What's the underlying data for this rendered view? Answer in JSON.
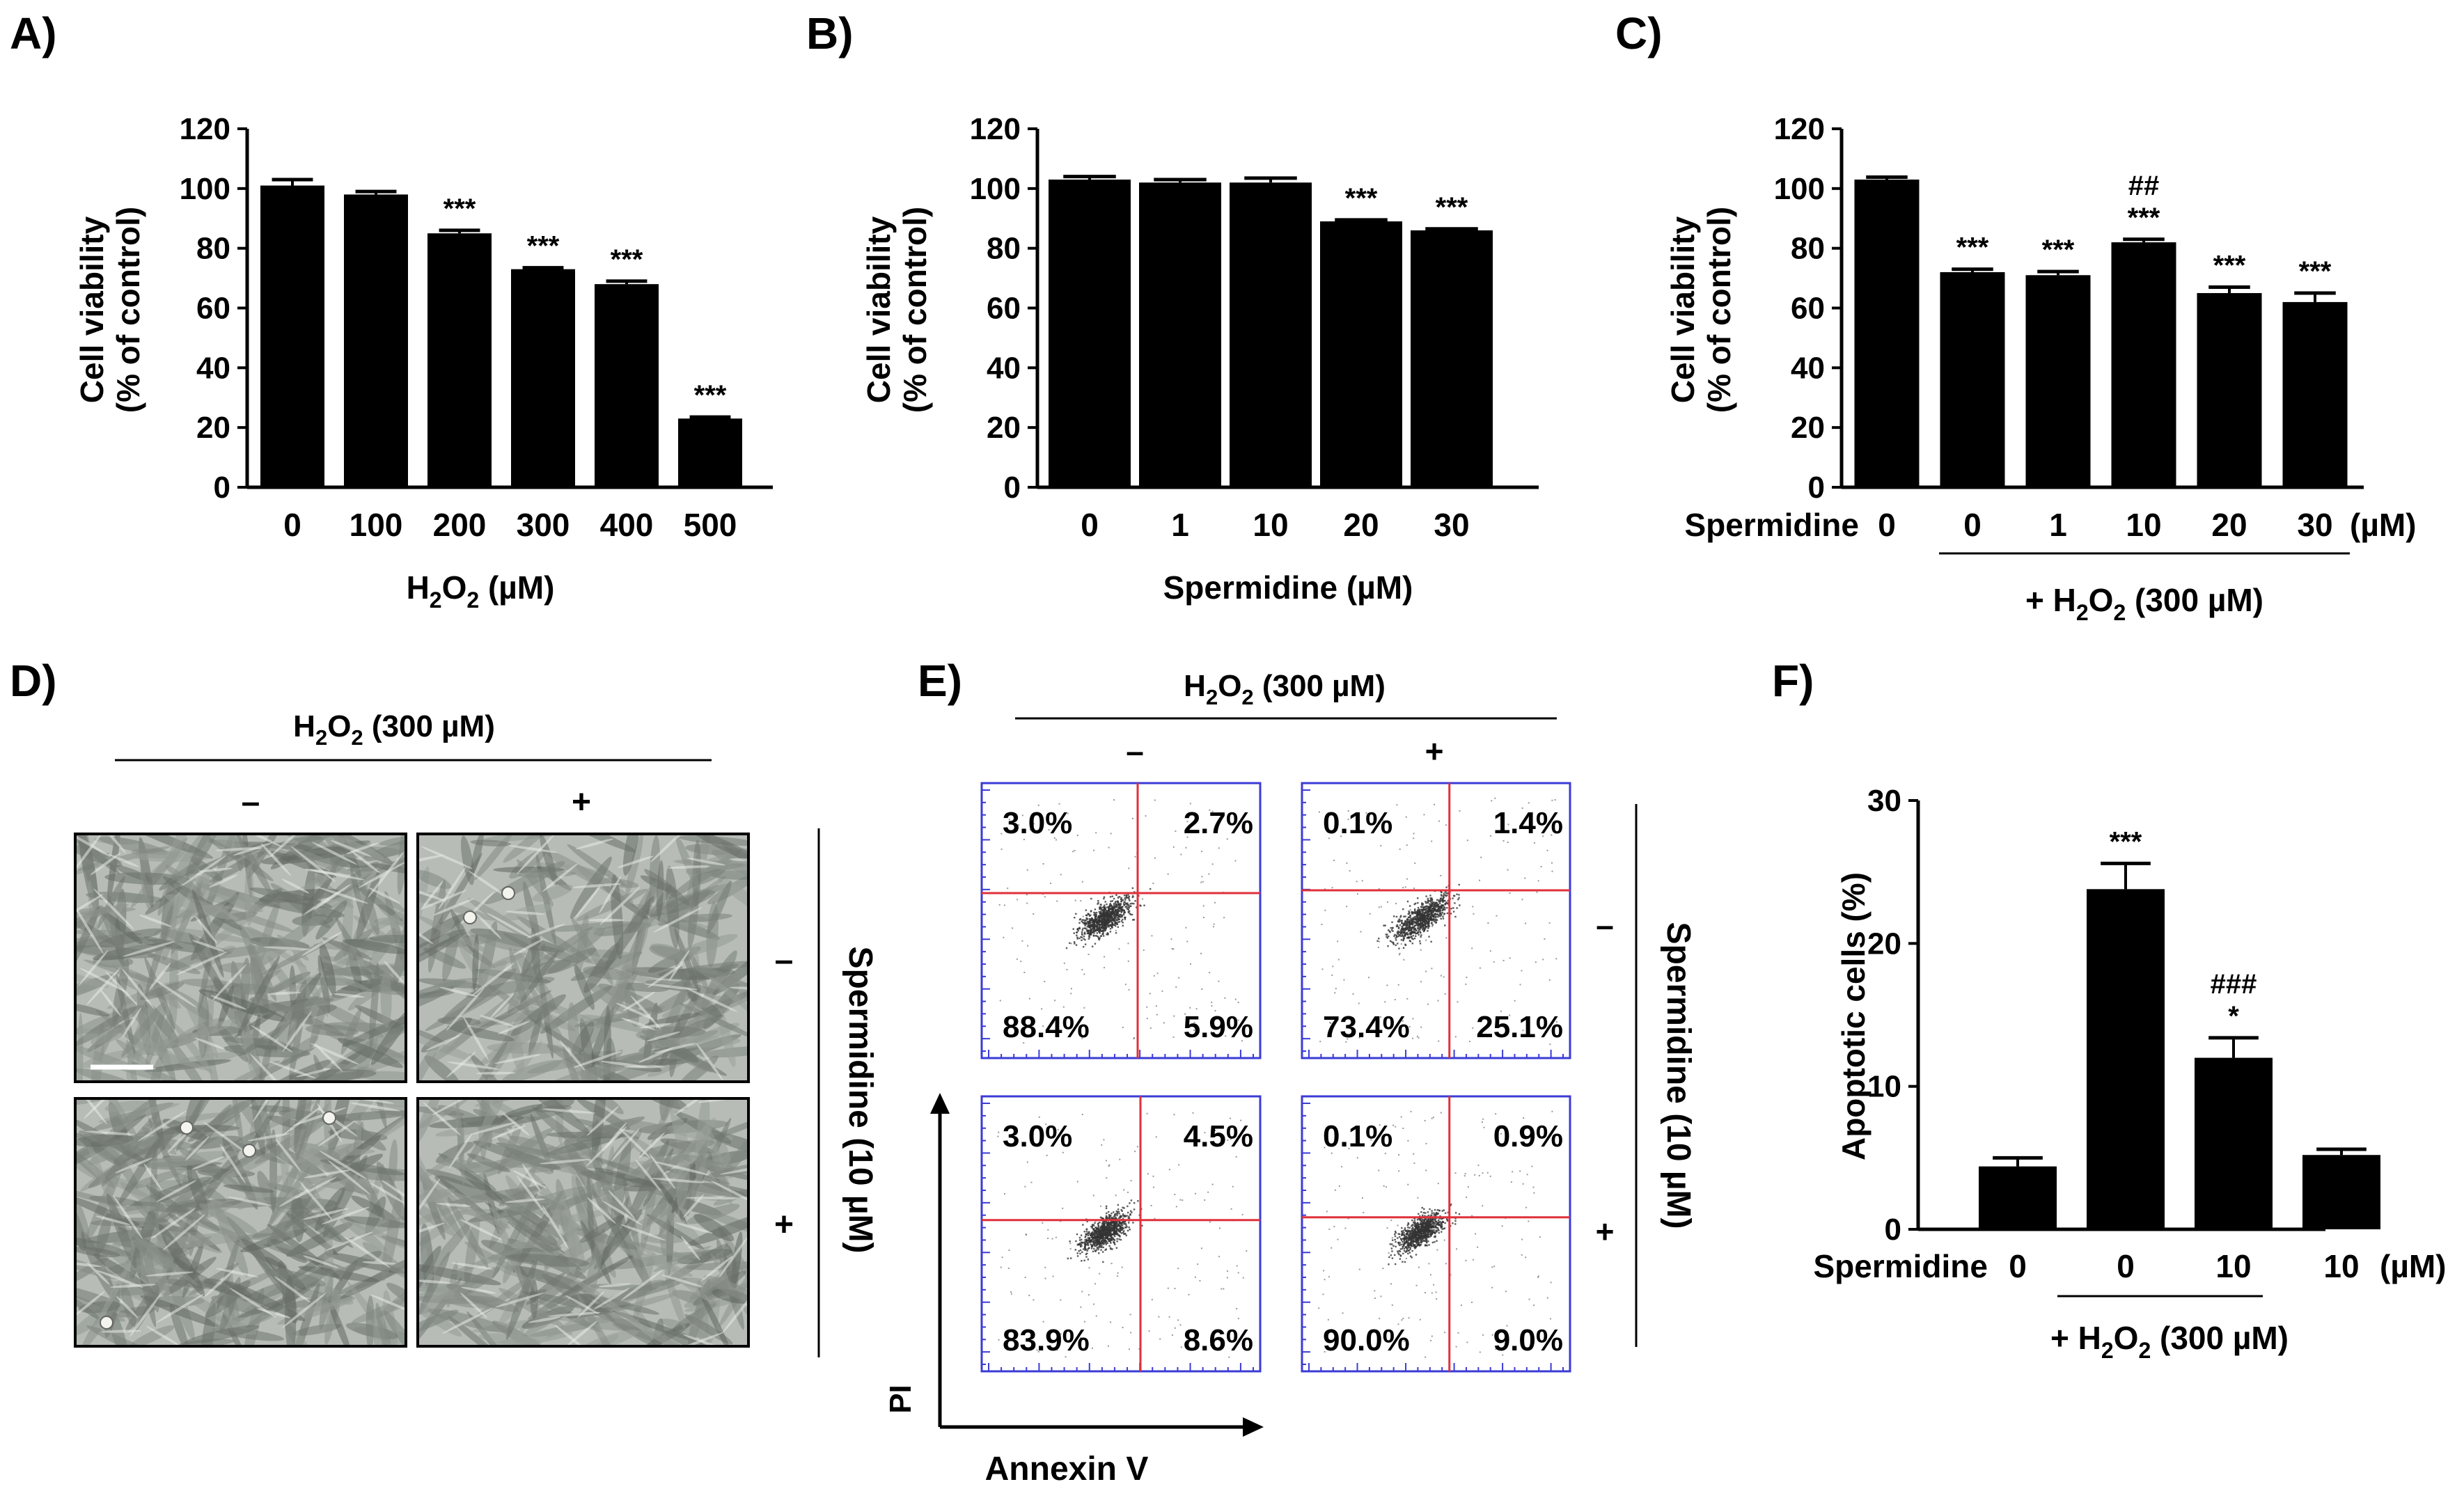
{
  "panels": {
    "A": "A)",
    "B": "B)",
    "C": "C)",
    "D": "D)",
    "E": "E)",
    "F": "F)"
  },
  "chart_data": [
    {
      "id": "A",
      "type": "bar",
      "categories": [
        "0",
        "100",
        "200",
        "300",
        "400",
        "500"
      ],
      "values": [
        101,
        98,
        85,
        73,
        68,
        23
      ],
      "errors": [
        2,
        1,
        1,
        0.5,
        1,
        0.5
      ],
      "annotations": [
        "",
        "",
        "***",
        "***",
        "***",
        "***"
      ],
      "ylabel": [
        "Cell viability",
        "(% of control)"
      ],
      "xlabel": {
        "pre": "H",
        "sub1": "2",
        "mid": "O",
        "sub2": "2",
        "post": " (µM)"
      },
      "ylim": [
        0,
        120
      ],
      "yticks": [
        0,
        20,
        40,
        60,
        80,
        100,
        120
      ]
    },
    {
      "id": "B",
      "type": "bar",
      "categories": [
        "0",
        "1",
        "10",
        "20",
        "30"
      ],
      "values": [
        103,
        102,
        102,
        89,
        86
      ],
      "errors": [
        1,
        1,
        1.5,
        0.5,
        0.5
      ],
      "annotations": [
        "",
        "",
        "",
        "***",
        "***"
      ],
      "ylabel": [
        "Cell viability",
        "(% of control)"
      ],
      "xlabel": "Spermidine (µM)",
      "ylim": [
        0,
        120
      ],
      "yticks": [
        0,
        20,
        40,
        60,
        80,
        100,
        120
      ]
    },
    {
      "id": "C",
      "type": "bar",
      "categories": [
        "0",
        "0",
        "1",
        "10",
        "20",
        "30"
      ],
      "values": [
        103,
        72,
        71,
        82,
        65,
        62
      ],
      "errors": [
        0.8,
        1,
        1.2,
        1,
        2,
        3
      ],
      "annotations": [
        "",
        "***",
        "***",
        "***",
        "***",
        "***"
      ],
      "annotations2": [
        "",
        "",
        "",
        "##",
        "",
        ""
      ],
      "row_label": "Spermidine",
      "unit": "(µM)",
      "group_label": {
        "pre": "+ H",
        "sub1": "2",
        "mid": "O",
        "sub2": "2",
        "post": " (300 µM)"
      },
      "ylabel": [
        "Cell viability",
        "(% of control)"
      ],
      "ylim": [
        0,
        120
      ],
      "yticks": [
        0,
        20,
        40,
        60,
        80,
        100,
        120
      ]
    },
    {
      "id": "F",
      "type": "bar",
      "categories": [
        "0",
        "0",
        "10",
        "10"
      ],
      "values": [
        4.4,
        23.8,
        12,
        5.2
      ],
      "errors": [
        0.6,
        1.8,
        1.4,
        0.4
      ],
      "annotations": [
        "",
        "***",
        "*",
        ""
      ],
      "annotations2": [
        "",
        "",
        "###",
        ""
      ],
      "row_label": "Spermidine",
      "unit": "(µM)",
      "group_label": {
        "pre": "+ H",
        "sub1": "2",
        "mid": "O",
        "sub2": "2",
        "post": " (300 µM)"
      },
      "ylabel": [
        "Apoptotic cells (%)"
      ],
      "ylim": [
        0,
        30
      ],
      "yticks": [
        0,
        10,
        20,
        30
      ]
    },
    {
      "id": "E",
      "type": "scatter",
      "title": {
        "pre": "H",
        "sub1": "2",
        "mid": "O",
        "sub2": "2",
        "post": " (300 µM)"
      },
      "col_labels": [
        "–",
        "+"
      ],
      "row_labels": [
        "–",
        "+"
      ],
      "side_label": "Spermidine (10 µM)",
      "xlabel": "Annexin V",
      "ylabel": "PI",
      "quadrants": [
        {
          "ul": "3.0%",
          "ur": "2.7%",
          "ll": "88.4%",
          "lr": "5.9%"
        },
        {
          "ul": "0.1%",
          "ur": "1.4%",
          "ll": "73.4%",
          "lr": "25.1%"
        },
        {
          "ul": "3.0%",
          "ur": "4.5%",
          "ll": "83.9%",
          "lr": "8.6%"
        },
        {
          "ul": "0.1%",
          "ur": "0.9%",
          "ll": "90.0%",
          "lr": "9.0%"
        }
      ]
    }
  ],
  "panel_D": {
    "title": {
      "pre": "H",
      "sub1": "2",
      "mid": "O",
      "sub2": "2",
      "post": " (300 µM)"
    },
    "col_labels": [
      "–",
      "+"
    ],
    "row_labels": [
      "–",
      "+"
    ],
    "side_label": "Spermidine (10 µM)"
  },
  "colors": {
    "bars": "#000000",
    "image_bg": "#b7bcb6",
    "cells": "#7d847d",
    "facs_frame": "#3b3bd6",
    "facs_gate": "#e0303a",
    "dots": "#333333"
  }
}
